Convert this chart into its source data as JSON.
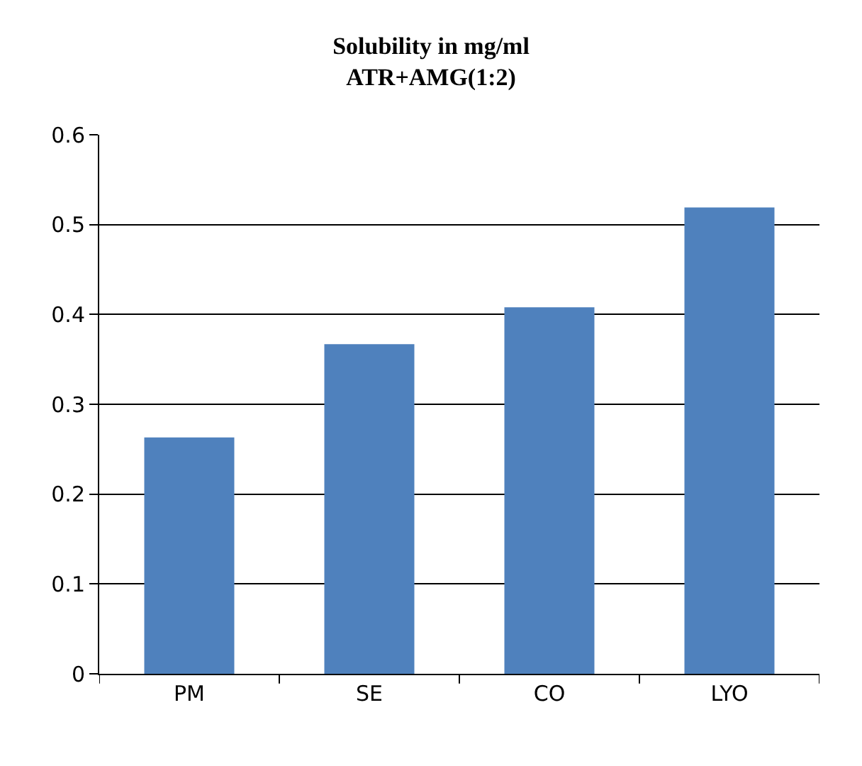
{
  "chart_data": {
    "type": "bar",
    "title": "Solubility in mg/ml",
    "subtitle": "ATR+AMG(1:2)",
    "categories": [
      "PM",
      "SE",
      "CO",
      "LYO"
    ],
    "values": [
      0.263,
      0.367,
      0.408,
      0.519
    ],
    "color": "#4f81bd",
    "ylim": [
      0,
      0.6
    ],
    "yticks": [
      0,
      0.1,
      0.2,
      0.3,
      0.4,
      0.5,
      0.6
    ],
    "grid": "y"
  }
}
